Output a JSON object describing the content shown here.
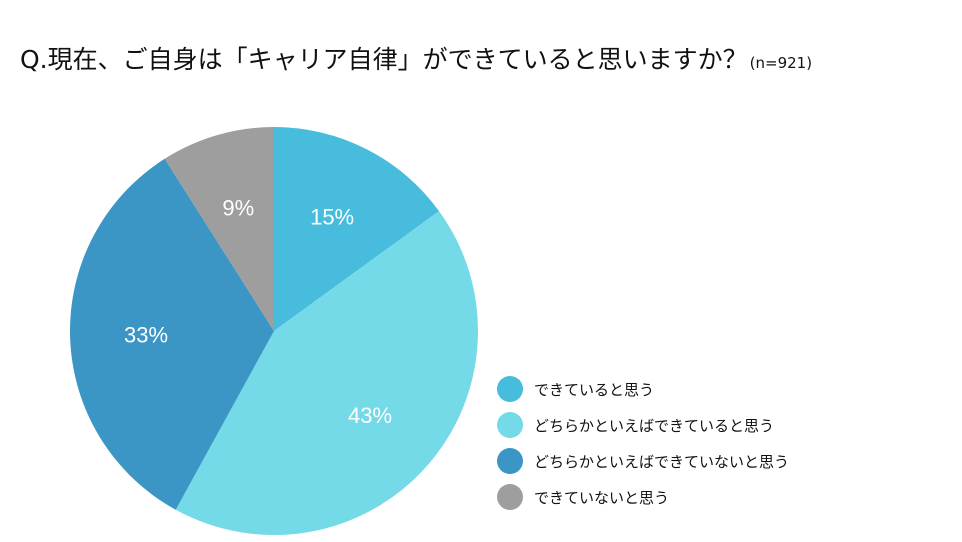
{
  "title": {
    "question": "Q.現在、ご自身は「キャリア自律」ができていると思いますか？",
    "sample": "(n=921)"
  },
  "chart_data": {
    "type": "pie",
    "title": "Q.現在、ご自身は「キャリア自律」ができていると思いますか？(n=921)",
    "unit": "%",
    "legend_position": "bottom-right",
    "slices": [
      {
        "label": " できていると思う",
        "value": 15,
        "display": "15%",
        "color": "#48BCDC"
      },
      {
        "label": "どちらかといえばできていると思う",
        "value": 43,
        "display": "43%",
        "color": "#74DAE8"
      },
      {
        "label": "どちらかといえばできていないと思う",
        "value": 33,
        "display": "33%",
        "color": "#3B96C5"
      },
      {
        "label": "できていないと思う",
        "value": 9,
        "display": "9%",
        "color": "#9E9E9E"
      }
    ]
  }
}
